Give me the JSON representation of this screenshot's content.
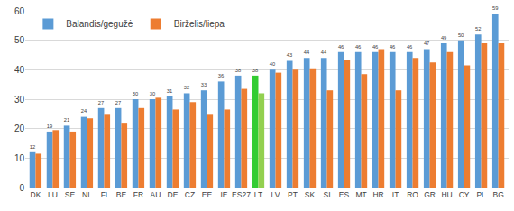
{
  "chart_data": {
    "type": "bar",
    "categories": [
      "DK",
      "LU",
      "SE",
      "NL",
      "FI",
      "BE",
      "FR",
      "AU",
      "DE",
      "CZ",
      "EE",
      "IE",
      "ES27",
      "LT",
      "LV",
      "PT",
      "SK",
      "SI",
      "ES",
      "MT",
      "HR",
      "IT",
      "RO",
      "GR",
      "HU",
      "CY",
      "PL",
      "BG"
    ],
    "series": [
      {
        "name": "Balandis/gegužė",
        "color": "#5b9bd5",
        "data_labels": true,
        "colors": [
          "#5b9bd5",
          "#5b9bd5",
          "#5b9bd5",
          "#5b9bd5",
          "#5b9bd5",
          "#5b9bd5",
          "#5b9bd5",
          "#5b9bd5",
          "#5b9bd5",
          "#5b9bd5",
          "#5b9bd5",
          "#5b9bd5",
          "#5b9bd5",
          "#33cc33",
          "#5b9bd5",
          "#5b9bd5",
          "#5b9bd5",
          "#5b9bd5",
          "#5b9bd5",
          "#5b9bd5",
          "#5b9bd5",
          "#5b9bd5",
          "#5b9bd5",
          "#5b9bd5",
          "#5b9bd5",
          "#5b9bd5",
          "#5b9bd5",
          "#5b9bd5"
        ],
        "values": [
          12,
          19,
          21,
          24,
          27,
          27,
          30,
          30,
          31,
          32,
          33,
          36,
          38,
          38,
          40,
          43,
          44,
          44,
          46,
          46,
          46,
          46,
          46,
          47,
          49,
          50,
          52,
          59
        ]
      },
      {
        "name": "Birželis/liepa",
        "color": "#ed7d31",
        "colors": [
          "#ed7d31",
          "#ed7d31",
          "#ed7d31",
          "#ed7d31",
          "#ed7d31",
          "#ed7d31",
          "#ed7d31",
          "#ed7d31",
          "#ed7d31",
          "#ed7d31",
          "#ed7d31",
          "#ed7d31",
          "#ed7d31",
          "#92d050",
          "#ed7d31",
          "#ed7d31",
          "#ed7d31",
          "#ed7d31",
          "#ed7d31",
          "#ed7d31",
          "#ed7d31",
          "#ed7d31",
          "#ed7d31",
          "#ed7d31",
          "#ed7d31",
          "#ed7d31",
          "#ed7d31",
          "#ed7d31"
        ],
        "values": [
          11.5,
          19.5,
          19,
          23.5,
          25,
          22,
          27,
          30.5,
          26.5,
          29,
          25,
          26.5,
          33.5,
          32,
          39,
          40,
          40.5,
          33,
          43.5,
          38.5,
          47,
          33,
          44,
          42.5,
          46,
          41.5,
          49,
          49
        ]
      }
    ],
    "ylim": [
      0,
      60
    ],
    "yticks": [
      0,
      10,
      20,
      30,
      40,
      50,
      60
    ],
    "grid": true,
    "legend": "top-left"
  }
}
